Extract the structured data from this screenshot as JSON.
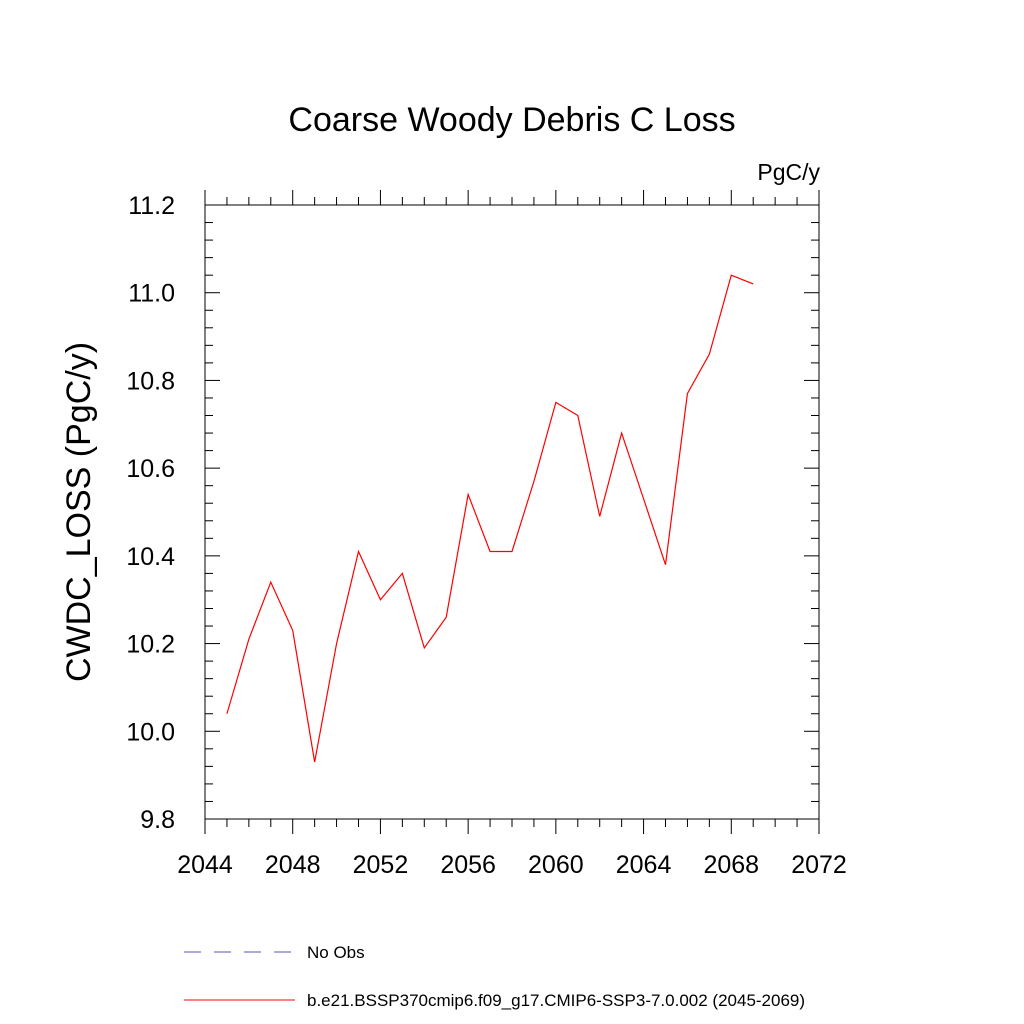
{
  "chart_data": {
    "type": "line",
    "title": "Coarse Woody Debris C Loss",
    "units": "PgC/y",
    "ylabel": "CWDC_LOSS  (PgC/y)",
    "xlabel": "",
    "xlim": [
      2044,
      2072
    ],
    "ylim": [
      9.8,
      11.2
    ],
    "xticks": [
      2044,
      2048,
      2052,
      2056,
      2060,
      2064,
      2068,
      2072
    ],
    "yticks": [
      9.8,
      10.0,
      10.2,
      10.4,
      10.6,
      10.8,
      11.0,
      11.2
    ],
    "xtick_labels": [
      "2044",
      "2048",
      "2052",
      "2056",
      "2060",
      "2064",
      "2068",
      "2072"
    ],
    "ytick_labels": [
      "9.8",
      "10.0",
      "10.2",
      "10.4",
      "10.6",
      "10.8",
      "11.0",
      "11.2"
    ],
    "grid": false,
    "legend_placement": "bottom",
    "series": [
      {
        "name": "b.e21.BSSP370cmip6.f09_g17.CMIP6-SSP3-7.0.002 (2045-2069)",
        "color": "#ff0000",
        "style": "solid",
        "x": [
          2045,
          2046,
          2047,
          2048,
          2049,
          2050,
          2051,
          2052,
          2053,
          2054,
          2055,
          2056,
          2057,
          2058,
          2059,
          2060,
          2061,
          2062,
          2063,
          2064,
          2065,
          2066,
          2067,
          2068,
          2069
        ],
        "y": [
          10.04,
          10.21,
          10.34,
          10.23,
          9.93,
          10.2,
          10.41,
          10.3,
          10.36,
          10.19,
          10.26,
          10.54,
          10.41,
          10.41,
          10.57,
          10.75,
          10.72,
          10.49,
          10.68,
          10.53,
          10.38,
          10.77,
          10.86,
          11.04,
          11.02
        ]
      }
    ],
    "legend": [
      {
        "label": "No Obs",
        "color": "#5555bb",
        "style": "dashed"
      },
      {
        "label": "b.e21.BSSP370cmip6.f09_g17.CMIP6-SSP3-7.0.002 (2045-2069)",
        "color": "#ff0000",
        "style": "solid"
      }
    ]
  }
}
